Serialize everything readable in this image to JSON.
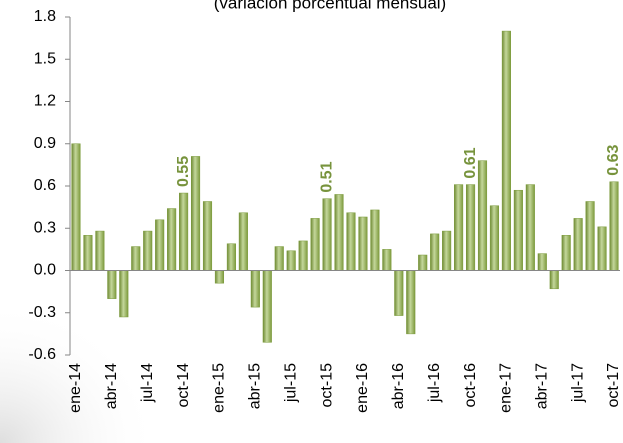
{
  "chart_data": {
    "type": "bar",
    "subtitle": "(variación porcentual mensual)",
    "categories": [
      "ene-14",
      null,
      null,
      "abr-14",
      null,
      null,
      "jul-14",
      null,
      null,
      "oct-14",
      null,
      null,
      "ene-15",
      null,
      null,
      "abr-15",
      null,
      null,
      "jul-15",
      null,
      null,
      "oct-15",
      null,
      null,
      "ene-16",
      null,
      null,
      "abr-16",
      null,
      null,
      "jul-16",
      null,
      null,
      "oct-16",
      null,
      null,
      "ene-17",
      null,
      null,
      "abr-17",
      null,
      null,
      "jul-17",
      null,
      null,
      "oct-17"
    ],
    "values": [
      0.9,
      0.25,
      0.28,
      -0.2,
      -0.33,
      0.17,
      0.28,
      0.36,
      0.44,
      0.55,
      0.81,
      0.49,
      -0.09,
      0.19,
      0.41,
      -0.26,
      -0.51,
      0.17,
      0.14,
      0.21,
      0.37,
      0.51,
      0.54,
      0.41,
      0.38,
      0.43,
      0.15,
      -0.32,
      -0.45,
      0.11,
      0.26,
      0.28,
      0.61,
      0.61,
      0.78,
      0.46,
      1.7,
      0.57,
      0.61,
      0.12,
      -0.13,
      0.25,
      0.37,
      0.49,
      0.31,
      0.63
    ],
    "value_labels": [
      null,
      null,
      null,
      null,
      null,
      null,
      null,
      null,
      null,
      "0.55",
      null,
      null,
      null,
      null,
      null,
      null,
      null,
      null,
      null,
      null,
      null,
      "0.51",
      null,
      null,
      null,
      null,
      null,
      null,
      null,
      null,
      null,
      null,
      null,
      "0.61",
      null,
      null,
      null,
      null,
      null,
      null,
      null,
      null,
      null,
      null,
      null,
      "0.63"
    ],
    "color": "#9bbb59",
    "ylim": [
      -0.6,
      1.8
    ],
    "yticks": [
      -0.6,
      -0.3,
      {
        "value": 0,
        "label": "0.0"
      },
      0.3,
      0.6,
      0.9,
      1.2,
      1.5,
      1.8
    ],
    "grid": false
  }
}
